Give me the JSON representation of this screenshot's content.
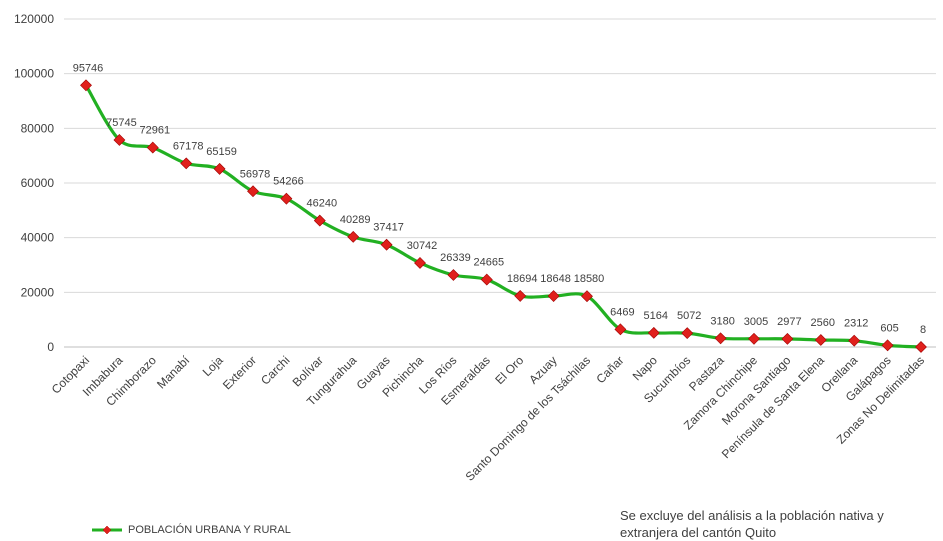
{
  "chart_data": {
    "type": "line",
    "title": "",
    "xlabel": "",
    "ylabel": "",
    "ylim": [
      0,
      120000
    ],
    "yticks": [
      0,
      20000,
      40000,
      60000,
      80000,
      100000,
      120000
    ],
    "grid": true,
    "legend_placement": "bottom-left",
    "categories": [
      "Cotopaxi",
      "Imbabura",
      "Chimborazo",
      "Manabí",
      "Loja",
      "Exterior",
      "Carchi",
      "Bolívar",
      "Tungurahua",
      "Guayas",
      "Pichincha",
      "Los Ríos",
      "Esmeraldas",
      "El Oro",
      "Azuay",
      "Santo Domingo de los Tsáchilas",
      "Cañar",
      "Napo",
      "Sucumbíos",
      "Pastaza",
      "Zamora Chinchipe",
      "Morona Santiago",
      "Península de Santa Elena",
      "Orellana",
      "Galápagos",
      "Zonas No Delimitadas"
    ],
    "series": [
      {
        "name": "POBLACIÓN URBANA Y RURAL",
        "values": [
          95746,
          75745,
          72961,
          67178,
          65159,
          56978,
          54266,
          46240,
          40289,
          37417,
          30742,
          26339,
          24665,
          18694,
          18648,
          18580,
          6469,
          5164,
          5072,
          3180,
          3005,
          2977,
          2560,
          2312,
          605,
          8
        ],
        "line_color": "#22b022",
        "marker_color": "#e0201c"
      }
    ]
  },
  "note": {
    "line1": "Se excluye del análisis a la población nativa y",
    "line2": "extranjera del cantón  Quito"
  },
  "colors": {
    "grid": "#d9d9d9",
    "axis": "#bfbfbf"
  }
}
